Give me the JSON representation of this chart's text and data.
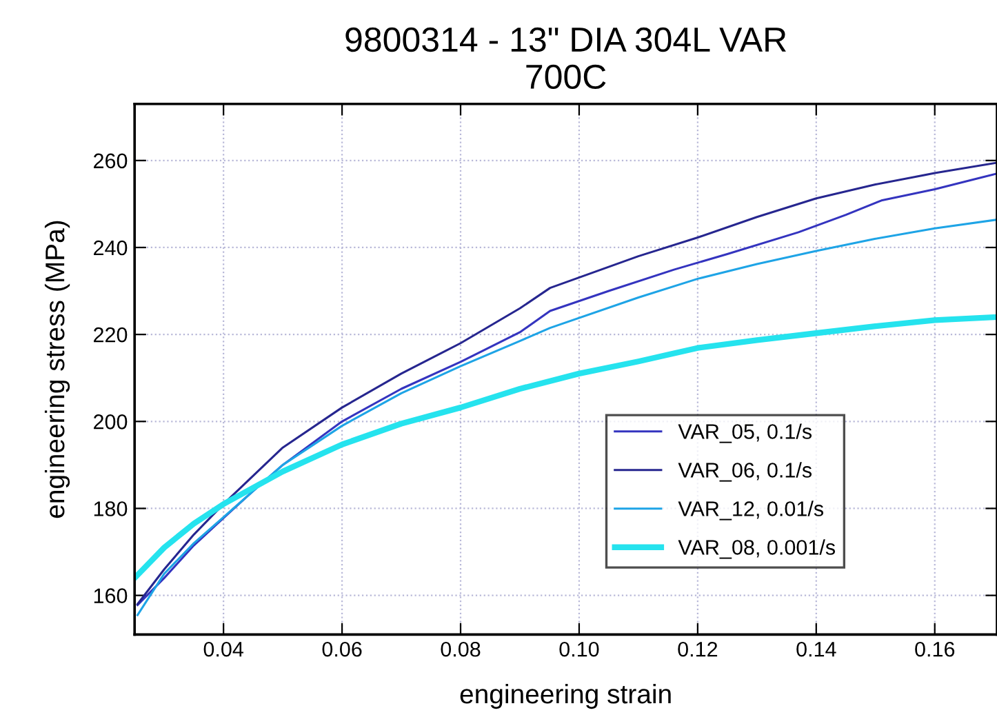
{
  "chart_data": {
    "type": "line",
    "title": "9800314 - 13\" DIA 304L VAR\n700C",
    "xlabel": "engineering strain",
    "ylabel": "engineering stress (MPa)",
    "xlim": [
      0.025,
      0.1705
    ],
    "ylim": [
      151,
      273
    ],
    "xticks": [
      {
        "value": 0.04,
        "label": "0.04"
      },
      {
        "value": 0.06,
        "label": "0.06"
      },
      {
        "value": 0.08,
        "label": "0.08"
      },
      {
        "value": 0.1,
        "label": "0.10"
      },
      {
        "value": 0.12,
        "label": "0.12"
      },
      {
        "value": 0.14,
        "label": "0.14"
      },
      {
        "value": 0.16,
        "label": "0.16"
      }
    ],
    "yticks": [
      160,
      180,
      200,
      220,
      240,
      260
    ],
    "grid": true,
    "legend": "right",
    "marker": "none",
    "line_style": "solid",
    "series": [
      {
        "name": "VAR_05, 0.1/s",
        "color": "#3434bf",
        "x": [
          0.0255,
          0.03,
          0.035,
          0.04,
          0.045,
          0.05,
          0.06,
          0.07,
          0.08,
          0.09,
          0.0951,
          0.105,
          0.116,
          0.125,
          0.137,
          0.145,
          0.151,
          0.16,
          0.1705
        ],
        "values": [
          157.8,
          164,
          171.5,
          177.8,
          184,
          190,
          200,
          207.5,
          213.7,
          220.5,
          225.4,
          230,
          234.9,
          238.5,
          243.5,
          247.5,
          250.8,
          253.4,
          257
        ]
      },
      {
        "name": "VAR_06, 0.1/s",
        "color": "#26268f",
        "x": [
          0.0255,
          0.03,
          0.035,
          0.04,
          0.045,
          0.05,
          0.06,
          0.07,
          0.08,
          0.09,
          0.0951,
          0.11,
          0.12,
          0.13,
          0.14,
          0.15,
          0.16,
          0.1705
        ],
        "values": [
          158,
          166,
          174,
          181,
          187.5,
          194,
          203.2,
          211,
          218,
          226,
          230.7,
          238,
          242.3,
          247,
          251.3,
          254.5,
          257.1,
          259.5
        ]
      },
      {
        "name": "VAR_12, 0.01/s",
        "color": "#1ea4e6",
        "x": [
          0.0255,
          0.03,
          0.035,
          0.04,
          0.045,
          0.05,
          0.06,
          0.07,
          0.08,
          0.09,
          0.0951,
          0.11,
          0.12,
          0.13,
          0.14,
          0.15,
          0.16,
          0.1705
        ],
        "values": [
          155.5,
          165,
          172,
          178,
          184,
          190,
          199,
          206.5,
          212.7,
          218.5,
          221.5,
          228.5,
          232.8,
          236.2,
          239.2,
          242,
          244.4,
          246.4
        ]
      },
      {
        "name": "VAR_08, 0.001/s",
        "color": "#25e3ee",
        "x": [
          0.025,
          0.03,
          0.035,
          0.04,
          0.05,
          0.06,
          0.07,
          0.08,
          0.09,
          0.1,
          0.11,
          0.12,
          0.13,
          0.14,
          0.15,
          0.16,
          0.1705
        ],
        "values": [
          164,
          171,
          176.5,
          181,
          188.5,
          194.7,
          199.5,
          203.2,
          207.5,
          211,
          213.8,
          216.9,
          218.7,
          220.3,
          221.9,
          223.3,
          224
        ]
      }
    ]
  }
}
